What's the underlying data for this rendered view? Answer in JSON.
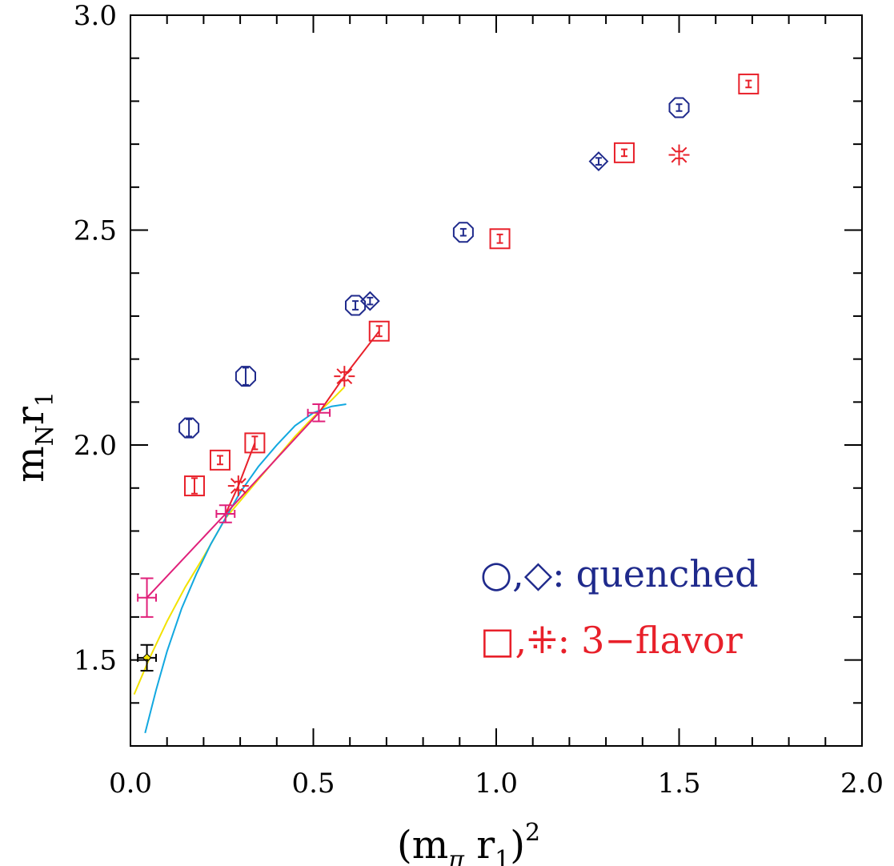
{
  "chart_data": {
    "type": "scatter",
    "title": "",
    "xlabel": {
      "base": "(m",
      "sub1": "π",
      "mid": " r",
      "sub2": "1",
      "close": ")",
      "sup": "2"
    },
    "ylabel": {
      "base": "m",
      "sub1": "N",
      "mid": "r",
      "sub2": "1"
    },
    "xlim": [
      0.0,
      2.0
    ],
    "ylim": [
      1.3,
      3.0
    ],
    "x_ticks": [
      0.0,
      0.5,
      1.0,
      1.5,
      2.0
    ],
    "x_tick_labels": [
      "0.0",
      "0.5",
      "1.0",
      "1.5",
      "2.0"
    ],
    "y_ticks": [
      1.5,
      2.0,
      2.5,
      3.0
    ],
    "y_tick_labels": [
      "1.5",
      "2.0",
      "2.5",
      "3.0"
    ],
    "grid": false,
    "colors": {
      "quenched": "#1f2a8c",
      "flavor": "#e8202a",
      "magenta": "#e0207a",
      "yellow": "#f2e200",
      "cyan": "#12a8e0",
      "black": "#000000"
    },
    "legend": {
      "position": "bottom-right",
      "entries": [
        {
          "symbols": "○,◇:",
          "label": "quenched",
          "color": "#1f2a8c"
        },
        {
          "symbols": "□,⁜:",
          "label": "3−flavor",
          "color": "#e8202a"
        }
      ]
    },
    "series": [
      {
        "group": "quenched",
        "marker": "octagon",
        "points": [
          {
            "x": 0.16,
            "y": 2.04,
            "yerr": 0.02
          },
          {
            "x": 0.315,
            "y": 2.16,
            "yerr": 0.02
          },
          {
            "x": 0.615,
            "y": 2.325,
            "yerr": 0.01
          },
          {
            "x": 0.91,
            "y": 2.495,
            "yerr": 0.008
          },
          {
            "x": 1.5,
            "y": 2.785,
            "yerr": 0.008
          }
        ]
      },
      {
        "group": "quenched",
        "marker": "diamond",
        "points": [
          {
            "x": 0.655,
            "y": 2.335,
            "yerr": 0.008
          },
          {
            "x": 1.28,
            "y": 2.66,
            "yerr": 0.008
          }
        ]
      },
      {
        "group": "3-flavor",
        "marker": "square",
        "points": [
          {
            "x": 0.175,
            "y": 1.905,
            "yerr": 0.018
          },
          {
            "x": 0.245,
            "y": 1.965,
            "yerr": 0.01
          },
          {
            "x": 0.34,
            "y": 2.005,
            "yerr": 0.015
          },
          {
            "x": 0.68,
            "y": 2.265,
            "yerr": 0.012
          },
          {
            "x": 1.01,
            "y": 2.48,
            "yerr": 0.01
          },
          {
            "x": 1.35,
            "y": 2.68,
            "yerr": 0.008
          },
          {
            "x": 1.69,
            "y": 2.84,
            "yerr": 0.008
          }
        ]
      },
      {
        "group": "3-flavor",
        "marker": "burst",
        "points": [
          {
            "x": 0.295,
            "y": 1.905,
            "yerr": 0.01
          },
          {
            "x": 0.585,
            "y": 2.16,
            "yerr": 0.01
          },
          {
            "x": 1.5,
            "y": 2.675,
            "yerr": 0.008
          }
        ]
      },
      {
        "group": "continuum",
        "marker": "cross",
        "color": "#e0207a",
        "points": [
          {
            "x": 0.045,
            "y": 1.645,
            "yerr": 0.045,
            "xerr": 0.025
          },
          {
            "x": 0.26,
            "y": 1.84,
            "yerr": 0.02,
            "xerr": 0.025
          },
          {
            "x": 0.515,
            "y": 2.075,
            "yerr": 0.02,
            "xerr": 0.03
          }
        ]
      },
      {
        "group": "physical",
        "marker": "cross",
        "color": "#000000",
        "points": [
          {
            "x": 0.045,
            "y": 1.505,
            "yerr": 0.03,
            "xerr": 0.025
          }
        ]
      }
    ],
    "lines": [
      {
        "color": "#e0207a",
        "points": [
          [
            0.045,
            1.645
          ],
          [
            0.26,
            1.84
          ],
          [
            0.515,
            2.075
          ]
        ]
      },
      {
        "color": "#e8202a",
        "points": [
          [
            0.295,
            1.905
          ],
          [
            0.34,
            2.005
          ]
        ]
      },
      {
        "color": "#e8202a",
        "points": [
          [
            0.585,
            2.16
          ],
          [
            0.68,
            2.265
          ]
        ]
      },
      {
        "color": "#e8202a",
        "points": [
          [
            0.26,
            1.84
          ],
          [
            0.295,
            1.905
          ]
        ]
      },
      {
        "color": "#e8202a",
        "points": [
          [
            0.515,
            2.075
          ],
          [
            0.585,
            2.16
          ]
        ]
      }
    ],
    "curves": [
      {
        "color": "#f2e200",
        "points": [
          [
            0.01,
            1.42
          ],
          [
            0.05,
            1.5
          ],
          [
            0.1,
            1.59
          ],
          [
            0.15,
            1.67
          ],
          [
            0.2,
            1.74
          ],
          [
            0.26,
            1.83
          ],
          [
            0.3,
            1.87
          ],
          [
            0.35,
            1.92
          ],
          [
            0.4,
            1.97
          ],
          [
            0.45,
            2.02
          ],
          [
            0.5,
            2.065
          ],
          [
            0.55,
            2.105
          ],
          [
            0.585,
            2.135
          ]
        ]
      },
      {
        "color": "#12a8e0",
        "points": [
          [
            0.04,
            1.33
          ],
          [
            0.07,
            1.43
          ],
          [
            0.1,
            1.52
          ],
          [
            0.14,
            1.62
          ],
          [
            0.18,
            1.7
          ],
          [
            0.22,
            1.77
          ],
          [
            0.26,
            1.83
          ],
          [
            0.3,
            1.89
          ],
          [
            0.35,
            1.95
          ],
          [
            0.4,
            2.0
          ],
          [
            0.45,
            2.045
          ],
          [
            0.5,
            2.075
          ],
          [
            0.55,
            2.09
          ],
          [
            0.59,
            2.095
          ]
        ]
      }
    ]
  }
}
